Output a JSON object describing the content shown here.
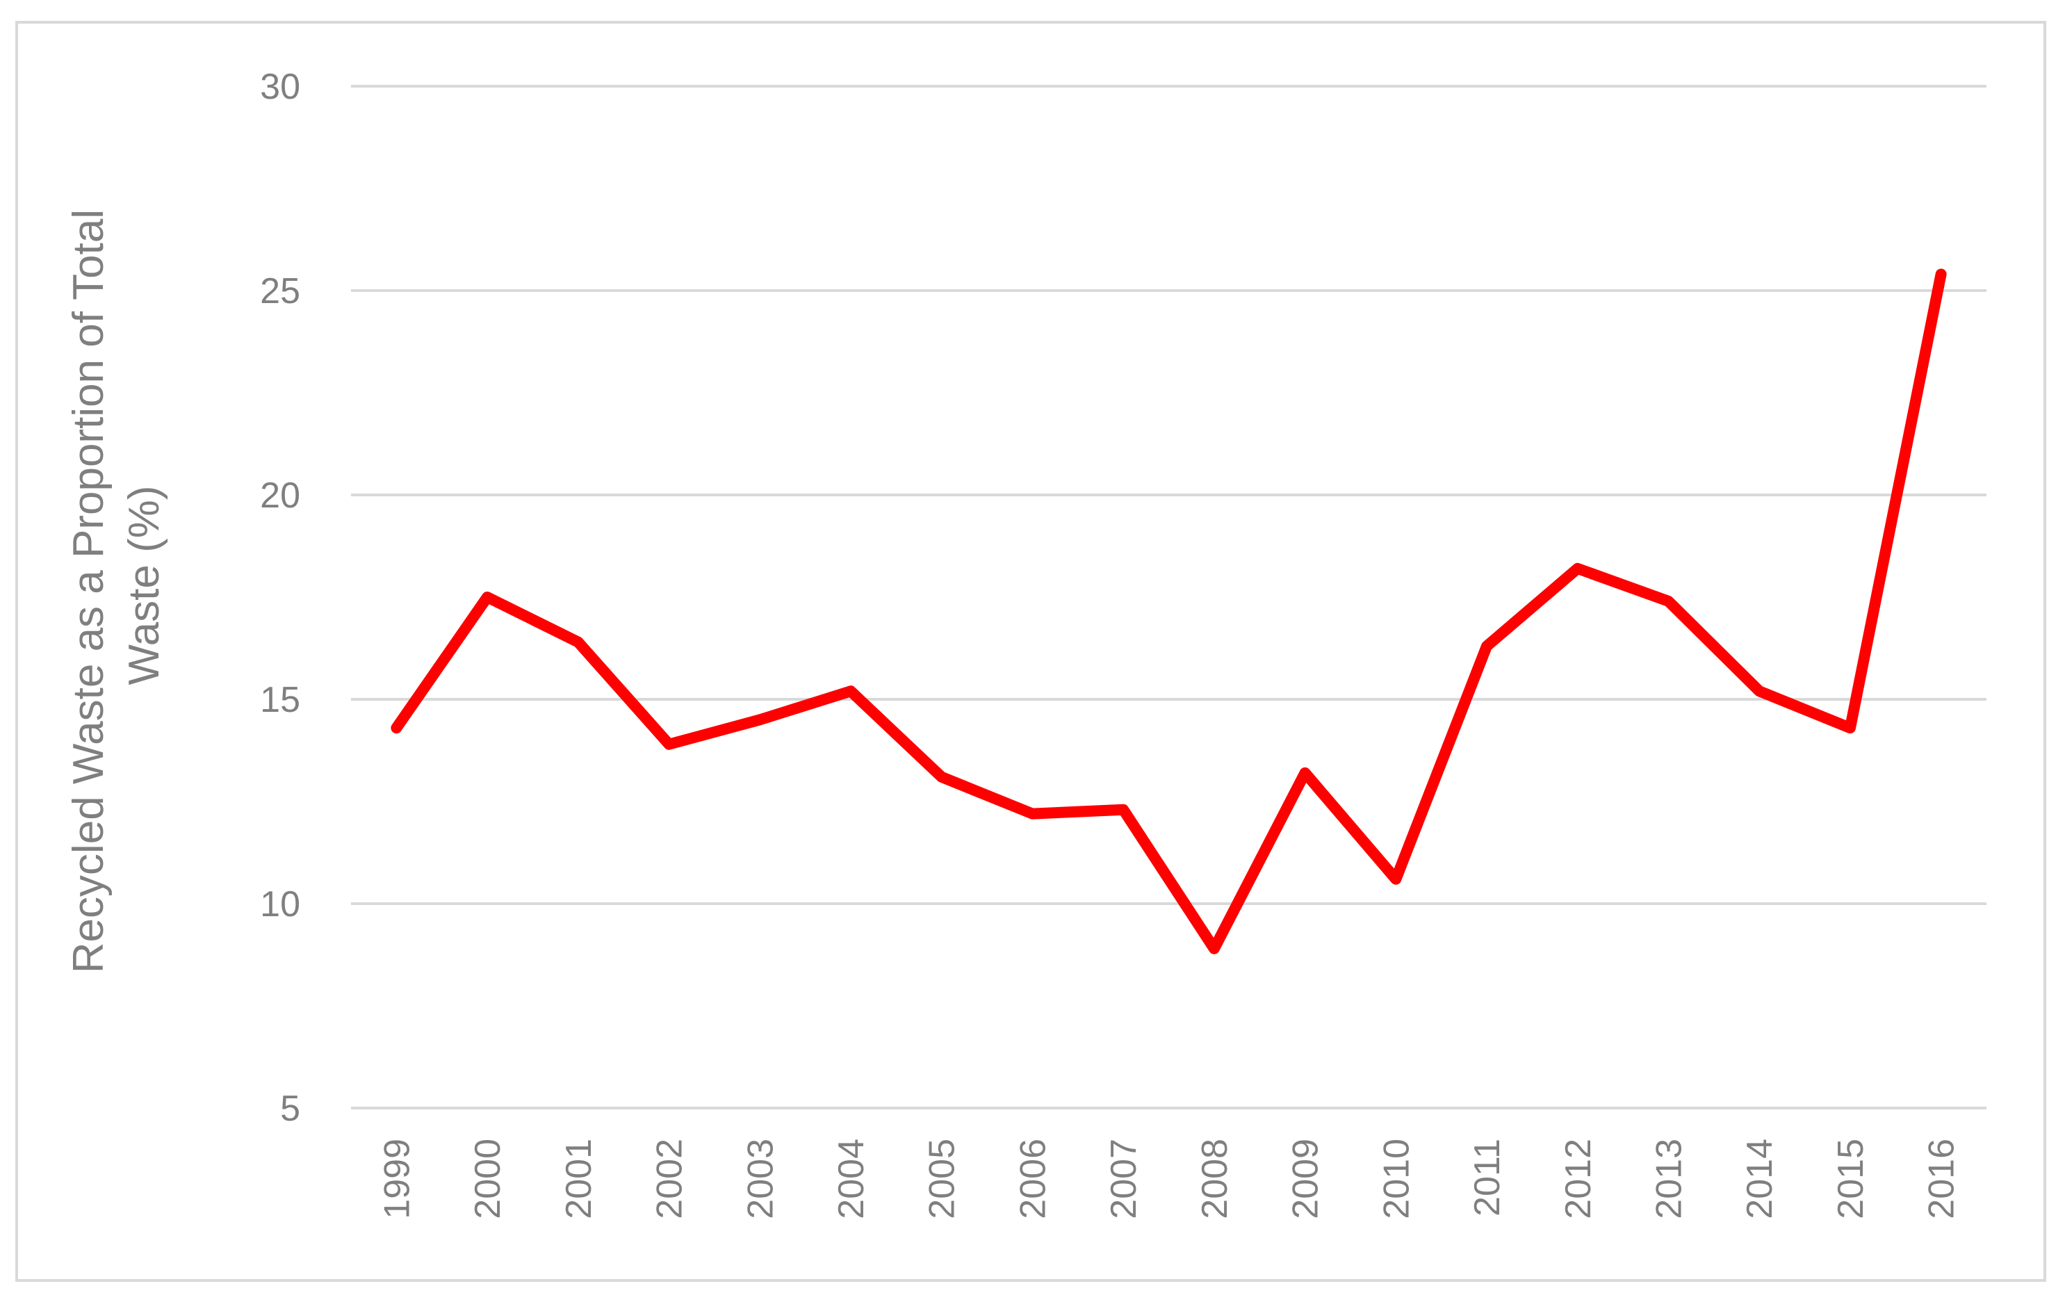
{
  "chart_data": {
    "type": "line",
    "title": "",
    "xlabel": "",
    "ylabel_lines": [
      "Recycled Waste as a Proportion of Total",
      "Waste (%)"
    ],
    "ylim": [
      5,
      30
    ],
    "yticks": [
      5,
      10,
      15,
      20,
      25,
      30
    ],
    "grid": true,
    "legend": "none",
    "categories": [
      "1999",
      "2000",
      "2001",
      "2002",
      "2003",
      "2004",
      "2005",
      "2006",
      "2007",
      "2008",
      "2009",
      "2010",
      "2011",
      "2012",
      "2013",
      "2014",
      "2015",
      "2016"
    ],
    "series": [
      {
        "color": "#ff0000",
        "values": [
          14.3,
          17.5,
          16.4,
          13.9,
          14.5,
          15.2,
          13.1,
          12.2,
          12.3,
          8.9,
          13.2,
          10.6,
          16.3,
          18.2,
          17.4,
          15.2,
          14.3,
          25.4
        ]
      }
    ],
    "colors": {
      "gridline": "#d9d9d9",
      "text": "#7f7f7f",
      "frame": "#d9d9d9"
    }
  }
}
